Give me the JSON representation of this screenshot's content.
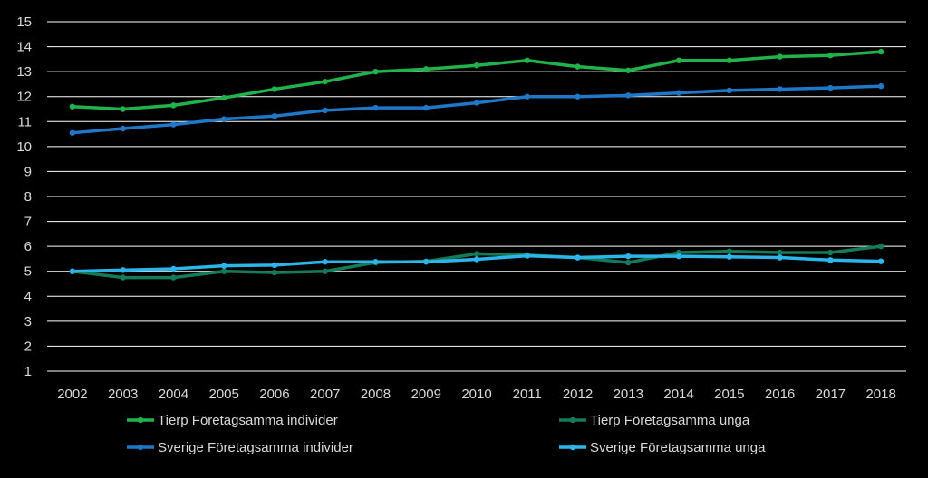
{
  "chart_data": {
    "type": "line",
    "title": "",
    "xlabel": "",
    "ylabel": "",
    "x": [
      "2002",
      "2003",
      "2004",
      "2005",
      "2006",
      "2007",
      "2008",
      "2009",
      "2010",
      "2011",
      "2012",
      "2013",
      "2014",
      "2015",
      "2016",
      "2017",
      "2018"
    ],
    "ylim": [
      1,
      15
    ],
    "yticks": [
      "1",
      "2",
      "3",
      "4",
      "5",
      "6",
      "7",
      "8",
      "9",
      "10",
      "11",
      "12",
      "13",
      "14",
      "15"
    ],
    "grid": true,
    "legend": "bottom",
    "series": [
      {
        "name": "Tierp Företagsamma individer",
        "color": "#22b24c",
        "values": [
          11.6,
          11.5,
          11.65,
          11.95,
          12.3,
          12.6,
          13.0,
          13.1,
          13.25,
          13.45,
          13.2,
          13.05,
          13.45,
          13.45,
          13.6,
          13.65,
          13.8
        ]
      },
      {
        "name": "Tierp Företagsamma unga",
        "color": "#147a57",
        "values": [
          5.0,
          4.75,
          4.75,
          5.0,
          4.95,
          5.0,
          5.35,
          5.4,
          5.7,
          5.65,
          5.55,
          5.35,
          5.75,
          5.8,
          5.75,
          5.75,
          6.0
        ]
      },
      {
        "name": "Sverige Företagsamma individer",
        "color": "#1f77c8",
        "values": [
          10.55,
          10.72,
          10.88,
          11.1,
          11.22,
          11.45,
          11.55,
          11.55,
          11.75,
          12.0,
          12.0,
          12.05,
          12.15,
          12.25,
          12.3,
          12.35,
          12.42
        ]
      },
      {
        "name": "Sverige Företagsamma unga",
        "color": "#2cb5e8",
        "values": [
          5.0,
          5.05,
          5.1,
          5.22,
          5.25,
          5.38,
          5.38,
          5.38,
          5.48,
          5.62,
          5.55,
          5.6,
          5.6,
          5.58,
          5.55,
          5.45,
          5.4
        ]
      }
    ]
  }
}
